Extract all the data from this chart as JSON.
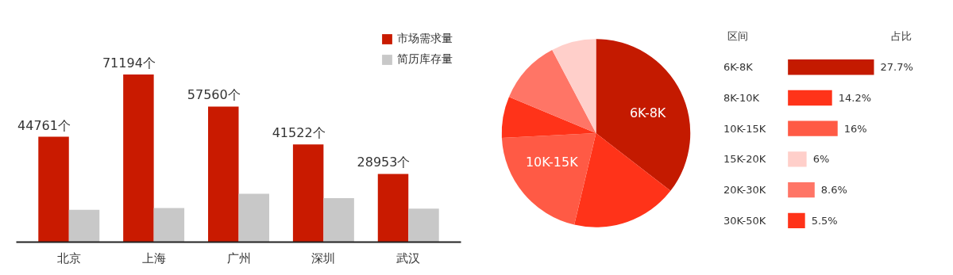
{
  "chart_data": [
    {
      "type": "bar",
      "legend": "top right",
      "categories": [
        "北京",
        "上海",
        "广州",
        "深圳",
        "武汉"
      ],
      "series": [
        {
          "name": "市场需求量",
          "color": "#c91a00",
          "values": [
            44761,
            71194,
            57560,
            41522,
            28953
          ],
          "value_labels": [
            "44761个",
            "71194个",
            "57560个",
            "41522个",
            "28953个"
          ]
        },
        {
          "name": "简历库存量",
          "color": "#c8c8c8",
          "values": [
            13700,
            14500,
            20500,
            18700,
            14200
          ]
        }
      ]
    },
    {
      "type": "pie",
      "categories": [
        "6K-8K",
        null,
        "10K-15K",
        null,
        null,
        null
      ],
      "values": [
        35.5,
        18.2,
        20.5,
        7.1,
        11.0,
        7.7
      ],
      "colors": [
        "#c41a00",
        "#ff3319",
        "#ff5a45",
        "#ff3319",
        "#ff7566",
        "#ffcfca"
      ]
    },
    {
      "type": "bar",
      "orientation": "horizontal",
      "tick_labels": "y",
      "annotations": [
        "区间",
        "占比"
      ],
      "categories": [
        "6K-8K",
        "8K-10K",
        "10K-15K",
        "15K-20K",
        "20K-30K",
        "30K-50K"
      ],
      "values": [
        27.7,
        14.2,
        16,
        6,
        8.6,
        5.5
      ],
      "colors": [
        "#c41a00",
        "#ff3319",
        "#ff5a45",
        "#ffcfca",
        "#ff7566",
        "#ff3319"
      ],
      "value_labels": [
        "27.7%",
        "14.2%",
        "16%",
        "6%",
        "8.6%",
        "5.5%"
      ]
    }
  ]
}
